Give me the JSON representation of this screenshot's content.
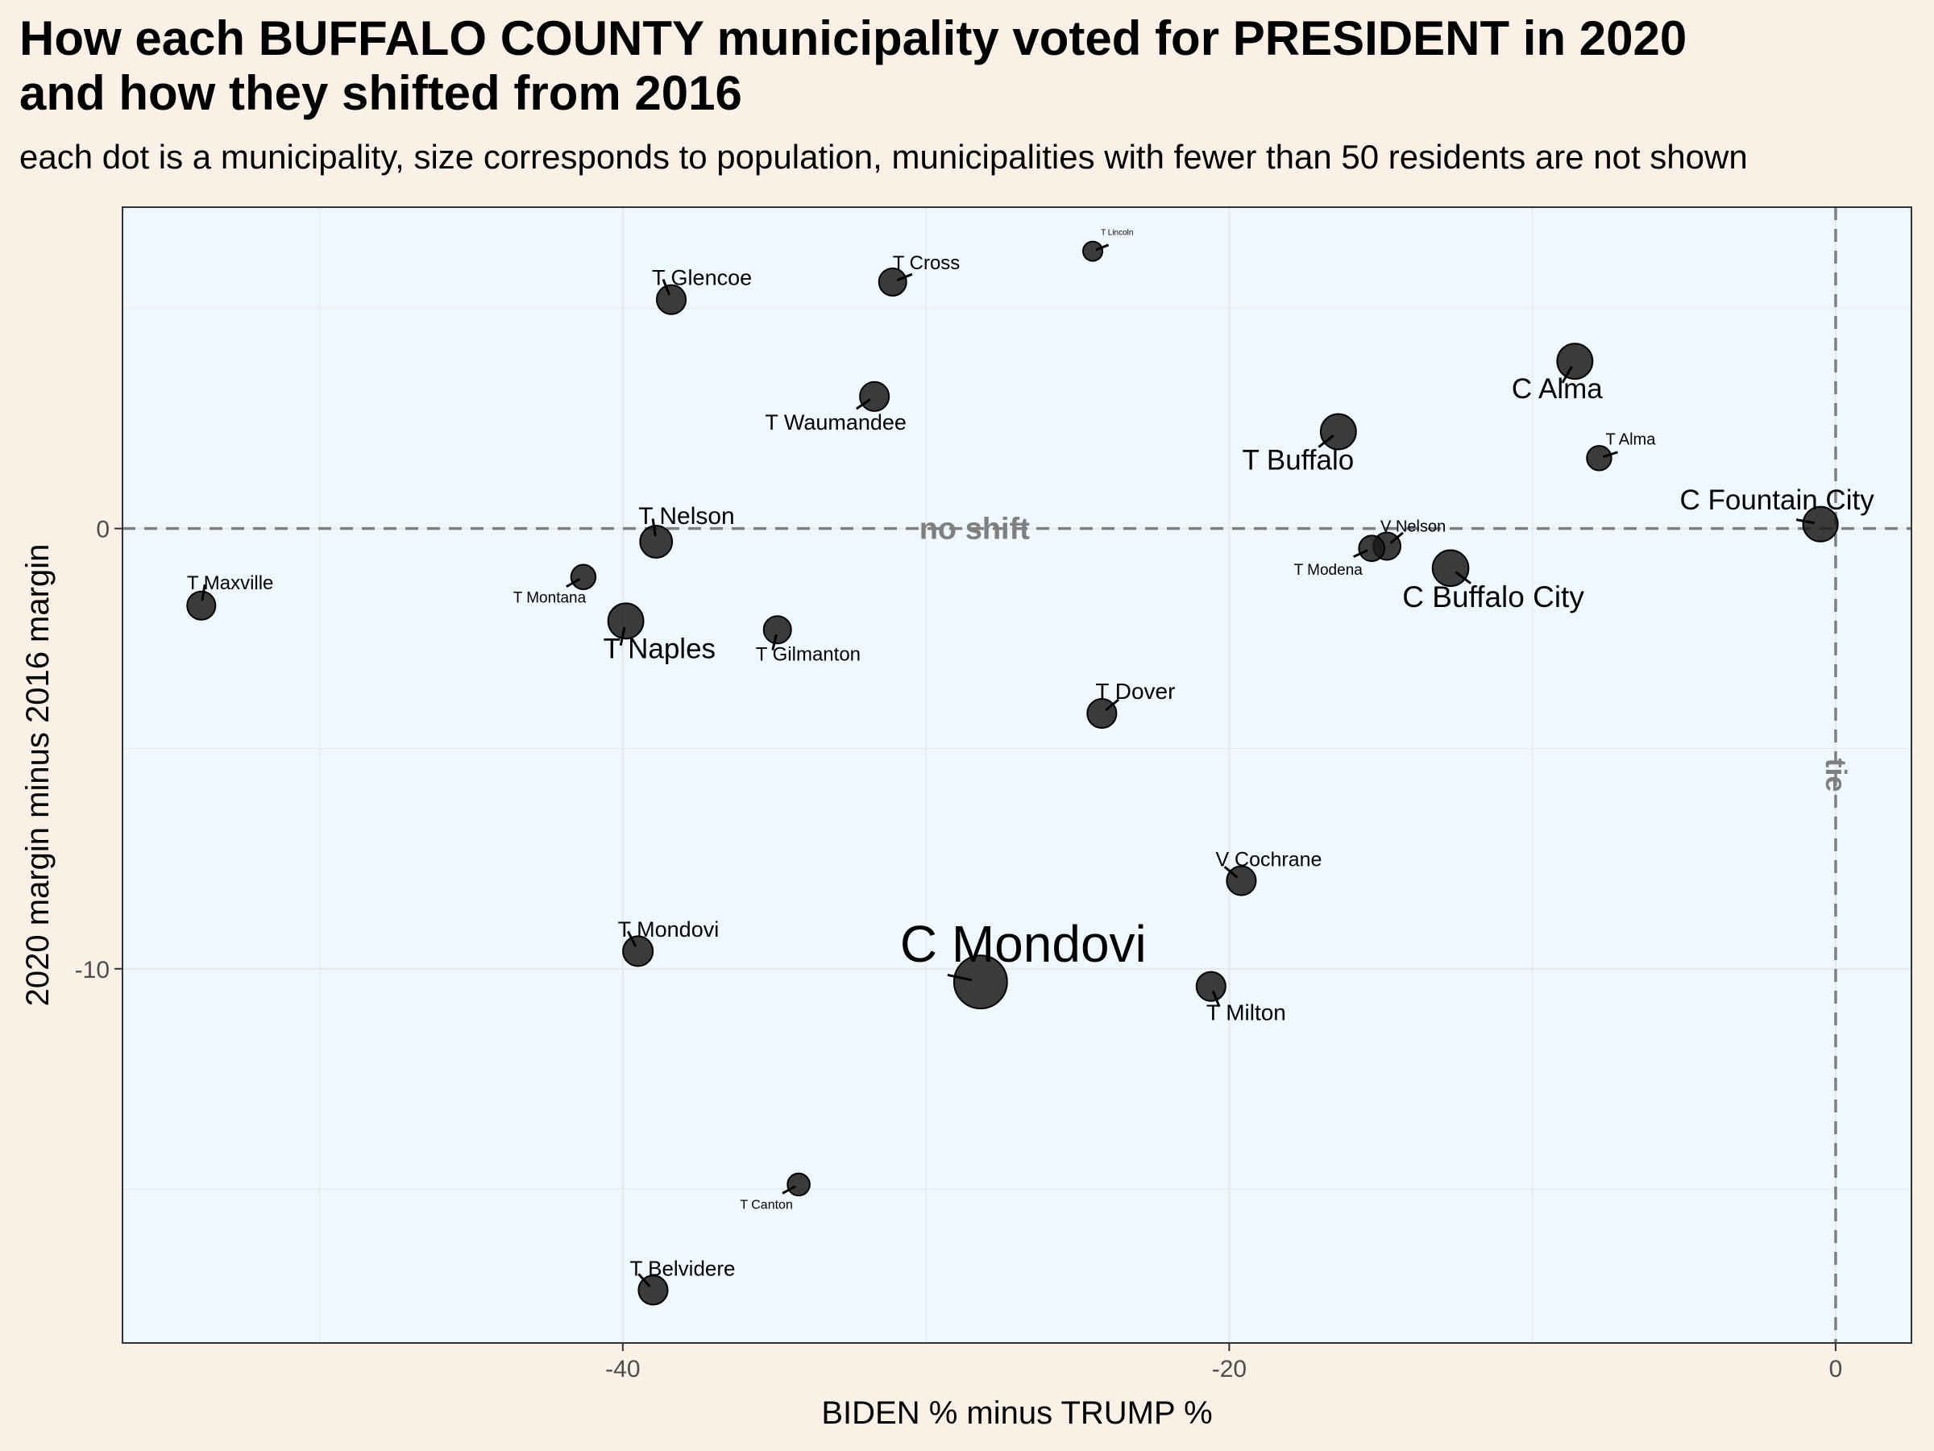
{
  "title_line1": "How each BUFFALO COUNTY municipality voted for PRESIDENT in 2020",
  "title_line2": "and how they shifted from 2016",
  "subtitle": "each dot is a municipality, size corresponds to population, municipalities with fewer than 50 residents are not shown",
  "colors": {
    "background": "#FAF0E6",
    "panel": "#F0F8FF",
    "grid": "#E8E8E8",
    "points": "#1A1A1A",
    "reference_lines": "#7F7F7F"
  },
  "chart_data": {
    "type": "scatter",
    "title": "How each BUFFALO COUNTY municipality voted for PRESIDENT in 2020 and how they shifted from 2016",
    "subtitle": "each dot is a municipality, size corresponds to population, municipalities with fewer than 50 residents are not shown",
    "xlabel": "BIDEN % minus TRUMP %",
    "ylabel": "2020 margin minus 2016 margin",
    "xlim": [
      -56.5,
      2.5
    ],
    "ylim": [
      -18.5,
      7.3
    ],
    "x_ticks": [
      -40,
      -20,
      0
    ],
    "x_tick_labels": [
      "-40",
      "-20",
      "0"
    ],
    "y_ticks": [
      0,
      -10
    ],
    "y_tick_labels": [
      "0",
      "-10"
    ],
    "grid": true,
    "reference_lines": [
      {
        "axis": "y",
        "value": 0,
        "label": "no shift"
      },
      {
        "axis": "x",
        "value": 0,
        "label": "tie"
      }
    ],
    "points": [
      {
        "name": "T Lincoln",
        "x": -24.5,
        "y": 6.3,
        "size": 0.3
      },
      {
        "name": "T Cross",
        "x": -31.1,
        "y": 5.6,
        "size": 1
      },
      {
        "name": "T Glencoe",
        "x": -38.4,
        "y": 5.2,
        "size": 1.2
      },
      {
        "name": "C Alma",
        "x": -8.6,
        "y": 3.8,
        "size": 2.1
      },
      {
        "name": "T Waumandee",
        "x": -31.7,
        "y": 3.0,
        "size": 1.2
      },
      {
        "name": "T Buffalo",
        "x": -16.4,
        "y": 2.2,
        "size": 2.1
      },
      {
        "name": "T Alma",
        "x": -7.8,
        "y": 1.6,
        "size": 0.7
      },
      {
        "name": "C Fountain City",
        "x": -0.5,
        "y": 0.1,
        "size": 2.0
      },
      {
        "name": "V Nelson",
        "x": -14.8,
        "y": -0.4,
        "size": 1
      },
      {
        "name": "T Modena",
        "x": -15.3,
        "y": -0.45,
        "size": 0.8
      },
      {
        "name": "T Nelson",
        "x": -38.9,
        "y": -0.3,
        "size": 1.6
      },
      {
        "name": "C Buffalo City",
        "x": -12.7,
        "y": -0.9,
        "size": 2.2
      },
      {
        "name": "T Montana",
        "x": -41.3,
        "y": -1.1,
        "size": 0.7
      },
      {
        "name": "T Maxville",
        "x": -53.9,
        "y": -1.75,
        "size": 1.1
      },
      {
        "name": "T Naples",
        "x": -39.9,
        "y": -2.1,
        "size": 2.1
      },
      {
        "name": "T Gilmanton",
        "x": -34.9,
        "y": -2.3,
        "size": 1
      },
      {
        "name": "T Dover",
        "x": -24.2,
        "y": -4.2,
        "size": 1.2
      },
      {
        "name": "V Cochrane",
        "x": -19.6,
        "y": -8.0,
        "size": 1.2
      },
      {
        "name": "T Mondovi",
        "x": -39.5,
        "y": -9.6,
        "size": 1.3
      },
      {
        "name": "C Mondovi",
        "x": -28.2,
        "y": -10.3,
        "size": 6.0
      },
      {
        "name": "T Milton",
        "x": -20.6,
        "y": -10.4,
        "size": 1.2
      },
      {
        "name": "T Canton",
        "x": -34.2,
        "y": -14.9,
        "size": 0.5
      },
      {
        "name": "T Belvidere",
        "x": -39.0,
        "y": -17.3,
        "size": 1.2
      }
    ]
  }
}
